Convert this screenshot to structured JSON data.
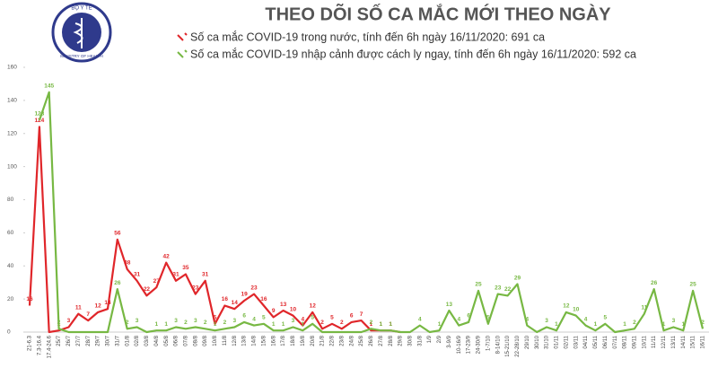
{
  "logo": {
    "top": "BỘ Y TẾ",
    "bottom": "MINISTRY OF HEALTH"
  },
  "chart_data": {
    "type": "line",
    "title": "THEO DÕI SỐ CA MẮC MỚI THEO NGÀY",
    "categories": [
      "21-6.3",
      "7.3-16.4",
      "17.4-24.6",
      "25/7",
      "26/7",
      "27/7",
      "28/7",
      "29/7",
      "30/7",
      "31/7",
      "01/8",
      "02/8",
      "03/8",
      "04/8",
      "05/8",
      "06/8",
      "07/8",
      "08/8",
      "09/8",
      "10/8",
      "11/8",
      "12/8",
      "13/8",
      "14/8",
      "15/8",
      "16/8",
      "17/8",
      "18/8",
      "19/8",
      "20/8",
      "21/8",
      "22/8",
      "23/8",
      "24/8",
      "25/8",
      "26/8",
      "27/8",
      "28/8",
      "29/8",
      "30/8",
      "31/8",
      "1/9",
      "2/9",
      "3-9/9",
      "10-16/9",
      "17-23/9",
      "24-30/9",
      "1-7/10",
      "8-14/10",
      "15-21/10",
      "22-28/10",
      "29/10",
      "30/10",
      "31/10",
      "01/11",
      "02/11",
      "03/11",
      "04/11",
      "05/11",
      "06/11",
      "07/11",
      "08/11",
      "09/11",
      "10/11",
      "11/11",
      "12/11",
      "13/11",
      "14/11",
      "15/11",
      "16/11"
    ],
    "series": [
      {
        "name": "Số ca mắc COVID-19 trong nước, tính đến 6h ngày 16/11/2020: 691 ca",
        "color": "#e0262a",
        "values": [
          16,
          124,
          0,
          1,
          3,
          11,
          7,
          12,
          14,
          56,
          38,
          31,
          22,
          27,
          42,
          31,
          35,
          23,
          31,
          5,
          16,
          14,
          19,
          23,
          16,
          9,
          13,
          10,
          4,
          12,
          2,
          5,
          2,
          6,
          7,
          1,
          1,
          1,
          0,
          null,
          null,
          null,
          null,
          null,
          null,
          null,
          null,
          null,
          null,
          null,
          null,
          null,
          null,
          null,
          null,
          null,
          null,
          null,
          null,
          null,
          null,
          null,
          null,
          null,
          null,
          null,
          null,
          null,
          null,
          null
        ]
      },
      {
        "name": "Số ca mắc COVID-19 nhập cảnh được cách ly ngay, tính đến 6h ngày 16/11/2020: 592 ca",
        "color": "#77b843",
        "values": [
          null,
          128,
          145,
          2,
          0,
          0,
          0,
          0,
          0,
          26,
          2,
          3,
          0,
          1,
          1,
          3,
          2,
          3,
          2,
          1,
          2,
          3,
          6,
          4,
          5,
          1,
          1,
          3,
          1,
          5,
          0,
          0,
          0,
          0,
          0,
          2,
          1,
          1,
          0,
          0,
          4,
          0,
          1,
          13,
          4,
          6,
          25,
          5,
          23,
          22,
          29,
          4,
          0,
          3,
          1,
          12,
          10,
          4,
          1,
          5,
          0,
          1,
          2,
          11,
          26,
          1,
          3,
          1,
          25,
          2
        ]
      }
    ],
    "ylim": [
      0,
      160
    ],
    "yticks": [
      0,
      20,
      40,
      60,
      80,
      100,
      120,
      140,
      160
    ],
    "grid": false
  }
}
